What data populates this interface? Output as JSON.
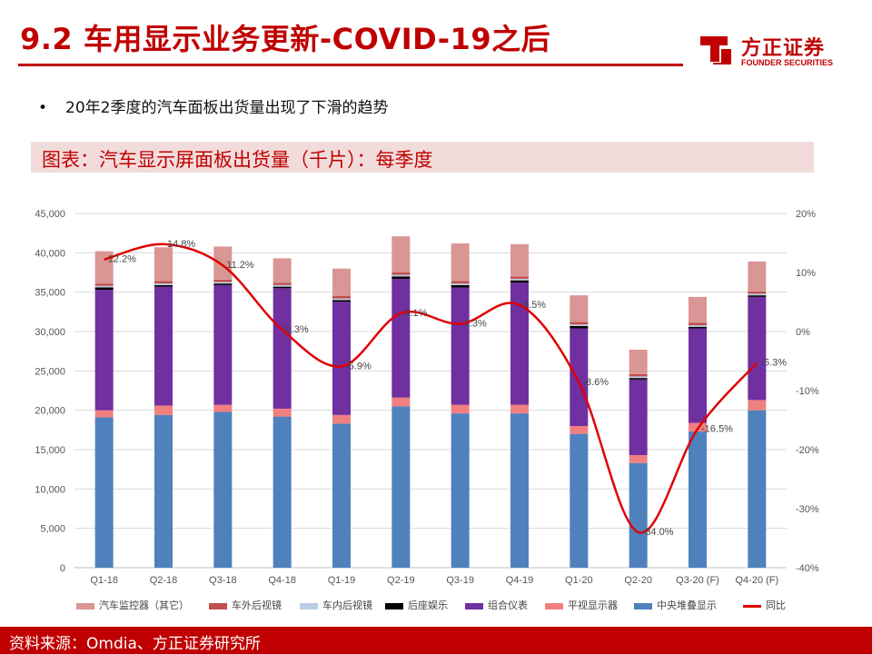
{
  "slide": {
    "title": "9.2 车用显示业务更新-COVID-19之后",
    "bullet": "20年2季度的汽车面板出货量出现了下滑的趋势",
    "caption": "图表：汽车显示屏面板出货量（千片）：每季度",
    "source": "资料来源：Omdia、方正证券研究所"
  },
  "logo": {
    "name_cn": "方正证券",
    "name_en": "FOUNDER SECURITIES",
    "color": "#c00000"
  },
  "chart_data": {
    "type": "bar",
    "stacked": true,
    "categories": [
      "Q1-18",
      "Q2-18",
      "Q3-18",
      "Q4-18",
      "Q1-19",
      "Q2-19",
      "Q3-19",
      "Q4-19",
      "Q1-20",
      "Q2-20",
      "Q3-20 (F)",
      "Q4-20 (F)"
    ],
    "series": [
      {
        "name": "中央堆叠显示",
        "color": "#4f81bd",
        "values": [
          19100,
          19400,
          19800,
          19200,
          18300,
          20500,
          19600,
          19600,
          17000,
          13300,
          17300,
          20000
        ]
      },
      {
        "name": "平视显示器",
        "color": "#f08080",
        "values": [
          900,
          1200,
          900,
          1000,
          1100,
          1100,
          1100,
          1100,
          1000,
          1000,
          1100,
          1300
        ]
      },
      {
        "name": "组合仪表",
        "color": "#7030a0",
        "values": [
          15300,
          15100,
          15200,
          15300,
          14400,
          15100,
          14900,
          15500,
          12400,
          9600,
          12000,
          13100
        ]
      },
      {
        "name": "后座娱乐",
        "color": "#000000",
        "values": [
          300,
          200,
          200,
          200,
          200,
          300,
          300,
          300,
          300,
          200,
          200,
          200
        ]
      },
      {
        "name": "车内后视镜",
        "color": "#b9cde5",
        "values": [
          200,
          200,
          200,
          200,
          200,
          200,
          200,
          200,
          200,
          200,
          200,
          200
        ]
      },
      {
        "name": "车外后视镜",
        "color": "#c0504d",
        "values": [
          300,
          300,
          300,
          300,
          300,
          300,
          300,
          300,
          300,
          300,
          300,
          300
        ]
      },
      {
        "name": "汽车监控器（其它）",
        "color": "#d99694",
        "values": [
          4100,
          4300,
          4200,
          3100,
          3500,
          4600,
          4800,
          4100,
          3400,
          3100,
          3300,
          3800
        ]
      }
    ],
    "line": {
      "name": "同比",
      "color": "#e00000",
      "values": [
        12.2,
        14.8,
        11.2,
        0.3,
        -5.9,
        3.1,
        1.3,
        4.5,
        -8.6,
        -34.0,
        -16.5,
        -5.3
      ],
      "labels": [
        "12.2%",
        "14.8%",
        "11.2%",
        "0.3%",
        "-5.9%",
        "3.1%",
        "1.3%",
        "4.5%",
        "-8.6%",
        "-34.0%",
        "-16.5%",
        "-5.3%"
      ]
    },
    "y_left": {
      "ylim": [
        0,
        45000
      ],
      "ticks": [
        "0",
        "5,000",
        "10,000",
        "15,000",
        "20,000",
        "25,000",
        "30,000",
        "35,000",
        "40,000",
        "45,000"
      ]
    },
    "y_right": {
      "ylim": [
        -40,
        20
      ],
      "ticks": [
        "-40%",
        "-30%",
        "-20%",
        "-10%",
        "0%",
        "10%",
        "20%"
      ]
    },
    "legend_order": [
      "汽车监控器（其它）",
      "车外后视镜",
      "车内后视镜",
      "后座娱乐",
      "组合仪表",
      "平视显示器",
      "中央堆叠显示",
      "同比"
    ],
    "grid": true,
    "legend_position": "bottom"
  }
}
